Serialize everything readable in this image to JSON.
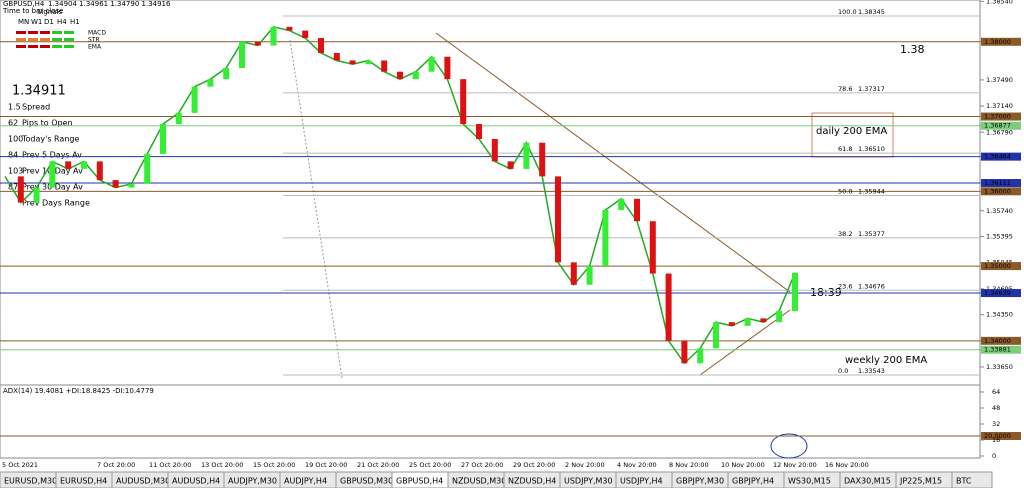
{
  "header": {
    "symbol": "GBPUSD,H4",
    "ohlc": "1.34904 1.34961 1.34790 1.34916",
    "timer": "Time to bar close"
  },
  "signals": {
    "title": "Signals",
    "timeframes": [
      "MN",
      "W1",
      "D1",
      "H4",
      "H1"
    ],
    "rows": [
      {
        "name": "MACD",
        "color": "#c00000"
      },
      {
        "name": "STR",
        "color": "#e08030"
      },
      {
        "name": "EMA",
        "color": "#c00000"
      }
    ]
  },
  "price": {
    "text": "1.34911"
  },
  "stats": [
    {
      "num": "1.5",
      "label": "Spread",
      "color": "#e08000"
    },
    {
      "num": "62",
      "label": "Pips to Open",
      "color": "#22aa22"
    },
    {
      "num": "100",
      "label": "Today's Range",
      "color": "#e08000"
    },
    {
      "num": "84",
      "label": "Prev 5 Days Av",
      "color": "#dd2222"
    },
    {
      "num": "103",
      "label": "Prev 10 Day Av",
      "color": "#dd2222"
    },
    {
      "num": "87",
      "label": "Prev 30 Day Av",
      "color": "#dd2222"
    },
    {
      "num": "",
      "label": "Prev Days Range",
      "color": "#1a1aaa"
    }
  ],
  "annotations": {
    "level_138": "1.38",
    "daily_ema": "daily 200 EMA",
    "weekly_ema": "weekly 200 EMA",
    "time": "18:39"
  },
  "price_axis": [
    {
      "value": 1.3854,
      "label": "1.38540"
    },
    {
      "value": 1.38,
      "label": "1.38000",
      "color": "#8b5a2b"
    },
    {
      "value": 1.3749,
      "label": "1.37490"
    },
    {
      "value": 1.3714,
      "label": "1.37140"
    },
    {
      "value": 1.37,
      "label": "1.37000",
      "color": "#8b5a2b"
    },
    {
      "value": 1.36877,
      "label": "1.36877",
      "color": "#7ccd7c"
    },
    {
      "value": 1.3679,
      "label": "1.36790"
    },
    {
      "value": 1.36464,
      "label": "1.36464",
      "color": "#2233aa"
    },
    {
      "value": 1.36111,
      "label": "1.36111",
      "color": "#2233aa"
    },
    {
      "value": 1.36,
      "label": "1.36000",
      "color": "#8b5a2b"
    },
    {
      "value": 1.3574,
      "label": "1.35740"
    },
    {
      "value": 1.35395,
      "label": "1.35395"
    },
    {
      "value": 1.35045,
      "label": "1.35045"
    },
    {
      "value": 1.35,
      "label": "1.35000",
      "color": "#8b5a2b"
    },
    {
      "value": 1.34695,
      "label": "1.34695"
    },
    {
      "value": 1.34639,
      "label": "1.34639",
      "color": "#2233aa"
    },
    {
      "value": 1.3435,
      "label": "1.34350"
    },
    {
      "value": 1.34,
      "label": "1.34000",
      "color": "#8b5a2b"
    },
    {
      "value": 1.33881,
      "label": "1.33881",
      "color": "#7ccd7c"
    },
    {
      "value": 1.3365,
      "label": "1.33650"
    }
  ],
  "fib": [
    {
      "ratio": "100.0",
      "value": 1.38345,
      "label": "1.38345"
    },
    {
      "ratio": "78.6",
      "value": 1.37317,
      "label": "1.37317"
    },
    {
      "ratio": "61.8",
      "value": 1.3651,
      "label": "1.36510"
    },
    {
      "ratio": "50.0",
      "value": 1.35944,
      "label": "1.35944"
    },
    {
      "ratio": "38.2",
      "value": 1.35377,
      "label": "1.35377"
    },
    {
      "ratio": "23.6",
      "value": 1.34676,
      "label": "1.34676"
    },
    {
      "ratio": "0.0",
      "value": 1.33543,
      "label": "1.33543"
    }
  ],
  "closes": [
    1.362,
    1.3585,
    1.3605,
    1.364,
    1.363,
    1.364,
    1.3615,
    1.3605,
    1.361,
    1.365,
    1.369,
    1.3705,
    1.374,
    1.375,
    1.3765,
    1.38,
    1.3795,
    1.382,
    1.3815,
    1.3805,
    1.3785,
    1.3775,
    1.377,
    1.3775,
    1.376,
    1.375,
    1.376,
    1.378,
    1.375,
    1.369,
    1.367,
    1.364,
    1.363,
    1.3665,
    1.362,
    1.3505,
    1.3475,
    1.35,
    1.3575,
    1.359,
    1.356,
    1.349,
    1.34,
    1.337,
    1.339,
    1.3425,
    1.342,
    1.343,
    1.3425,
    1.344,
    1.3491
  ],
  "adx": {
    "label": "ADX(14) 19.4081 +DI:18.8425 -DI:10.4779",
    "ticks": [
      {
        "value": 64,
        "label": "64"
      },
      {
        "value": 48,
        "label": "48"
      },
      {
        "value": 32,
        "label": "32"
      },
      {
        "value": 20,
        "label": "20.0000"
      },
      {
        "value": 16,
        "label": "16"
      },
      {
        "value": 0,
        "label": "0"
      }
    ]
  },
  "dates": [
    "5 Oct 2021",
    "7 Oct 20:00",
    "11 Oct 20:00",
    "13 Oct 20:00",
    "15 Oct 20:00",
    "19 Oct 20:00",
    "21 Oct 20:00",
    "25 Oct 20:00",
    "27 Oct 20:00",
    "29 Oct 20:00",
    "2 Nov 20:00",
    "4 Nov 20:00",
    "8 Nov 20:00",
    "10 Nov 20:00",
    "12 Nov 20:00",
    "16 Nov 20:00"
  ],
  "tabs": [
    "EURUSD,M30",
    "EURUSD,H4",
    "AUDUSD,M30",
    "AUDUSD,H4",
    "AUDJPY,M30",
    "AUDJPY,H4",
    "GBPUSD,M30",
    "GBPUSD,H4",
    "NZDUSD,M30",
    "NZDUSD,H4",
    "USDJPY,M30",
    "USDJPY,H4",
    "GBPJPY,M30",
    "GBPJPY,H4",
    "WS30,M15",
    "DAX30,M15",
    "JP225,M15",
    "BTC"
  ],
  "active_tab": 7
}
